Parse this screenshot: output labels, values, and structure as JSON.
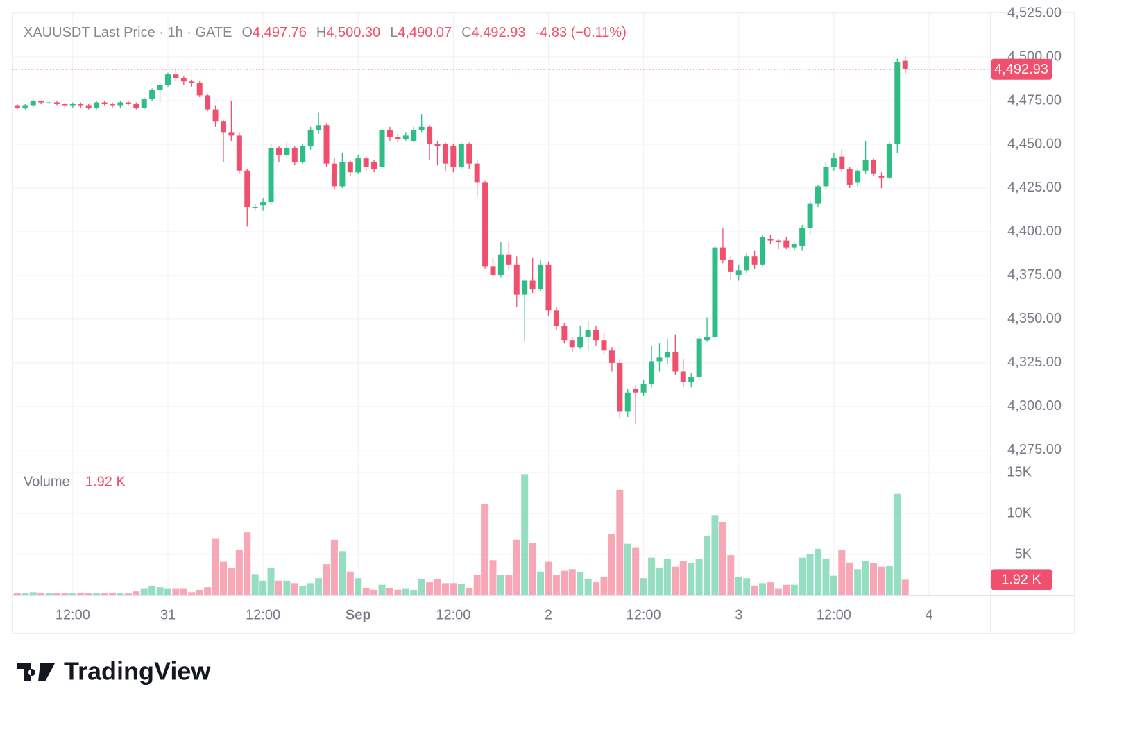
{
  "chart_data": {
    "type": "candlestick",
    "legend": {
      "symbol": "XAUUSDT Last Price · 1h · GATE",
      "o_label": "O",
      "o": "4,497.76",
      "h_label": "H",
      "h": "4,500.30",
      "l_label": "L",
      "l": "4,490.07",
      "c_label": "C",
      "c": "4,492.93",
      "change": "-4.83 (−0.11%)"
    },
    "volume_title": "Volume",
    "volume_value_label": "1.92 K",
    "last_price_label": "4,492.93",
    "brand": "TradingView",
    "up_color": "#2ebd85",
    "down_color": "#f0506d",
    "grid": true,
    "xlim": [
      -0.6,
      122.7
    ],
    "xticks": [
      {
        "value": 7,
        "label": "12:00"
      },
      {
        "value": 19,
        "label": "31"
      },
      {
        "value": 31,
        "label": "12:00"
      },
      {
        "value": 43,
        "label": "Sep"
      },
      {
        "value": 55,
        "label": "12:00"
      },
      {
        "value": 67,
        "label": "2"
      },
      {
        "value": 79,
        "label": "12:00"
      },
      {
        "value": 91,
        "label": "3"
      },
      {
        "value": 103,
        "label": "12:00"
      },
      {
        "value": 115,
        "label": "4"
      }
    ],
    "ylim": [
      4269.4,
      4525.4
    ],
    "yticks": [
      {
        "value": 4275,
        "label": "4,275.00"
      },
      {
        "value": 4300,
        "label": "4,300.00"
      },
      {
        "value": 4325,
        "label": "4,325.00"
      },
      {
        "value": 4350,
        "label": "4,350.00"
      },
      {
        "value": 4375,
        "label": "4,375.00"
      },
      {
        "value": 4400,
        "label": "4,400.00"
      },
      {
        "value": 4425,
        "label": "4,425.00"
      },
      {
        "value": 4450,
        "label": "4,450.00"
      },
      {
        "value": 4475,
        "label": "4,475.00"
      },
      {
        "value": 4500,
        "label": "4,500.00"
      },
      {
        "value": 4525,
        "label": "4,525.00"
      }
    ],
    "y2lim": [
      0,
      16356
    ],
    "y2ticks": [
      {
        "value": 5000,
        "label": "5K"
      },
      {
        "value": 10000,
        "label": "10K"
      },
      {
        "value": 15000,
        "label": "15K"
      }
    ],
    "open": [
      4472,
      4471,
      4472,
      4475,
      4474,
      4474,
      4473,
      4472,
      4473,
      4472,
      4471,
      4474,
      4473,
      4472,
      4474,
      4473,
      4471,
      4476,
      4481,
      4484,
      4490,
      4488,
      4486,
      4485,
      4478,
      4470,
      4463,
      4457,
      4455,
      4435,
      4414,
      4415,
      4417,
      4448,
      4444,
      4448,
      4440,
      4449,
      4458,
      4461,
      4439,
      4426,
      4440,
      4434,
      4442,
      4440,
      4437,
      4458,
      4454,
      4453,
      4452,
      4458,
      4460,
      4450,
      4450,
      4449,
      4437,
      4450,
      4439,
      4428,
      4380,
      4375,
      4387,
      4381,
      4364,
      4372,
      4367,
      4381,
      4355,
      4346,
      4338,
      4334,
      4340,
      4344,
      4338,
      4332,
      4325,
      4297,
      4310,
      4308,
      4313,
      4326,
      4328,
      4331,
      4320,
      4314,
      4317,
      4338,
      4340,
      4391,
      4384,
      4375,
      4378,
      4386,
      4381,
      4396,
      4395,
      4395,
      4391,
      4392,
      4402,
      4416,
      4426,
      4437,
      4443,
      4436,
      4428,
      4435,
      4441,
      4432,
      4431,
      4450,
      4497.76
    ],
    "high": [
      4473,
      4473,
      4476,
      4475,
      4475,
      4475,
      4474,
      4474,
      4474,
      4473,
      4475,
      4475,
      4474,
      4475,
      4475,
      4474,
      4477,
      4482,
      4485,
      4491,
      4493,
      4489,
      4487,
      4486,
      4479,
      4472,
      4464,
      4475,
      4457,
      4436,
      4416,
      4419,
      4450,
      4449,
      4451,
      4449,
      4450,
      4460,
      4468,
      4462,
      4442,
      4445,
      4441,
      4444,
      4443,
      4441,
      4459,
      4460,
      4456,
      4457,
      4460,
      4467,
      4461,
      4452,
      4451,
      4450,
      4451,
      4451,
      4441,
      4429,
      4385,
      4394,
      4394,
      4386,
      4373,
      4385,
      4384,
      4383,
      4357,
      4348,
      4340,
      4346,
      4349,
      4346,
      4342,
      4334,
      4327,
      4310,
      4312,
      4315,
      4335,
      4336,
      4339,
      4341,
      4327,
      4319,
      4340,
      4351,
      4392,
      4402,
      4386,
      4381,
      4388,
      4389,
      4398,
      4398,
      4396,
      4397,
      4394,
      4404,
      4418,
      4427,
      4440,
      4445,
      4447,
      4437,
      4436,
      4452,
      4442,
      4434,
      4451,
      4499,
      4500.3
    ],
    "low": [
      4470,
      4470,
      4471,
      4473,
      4473,
      4472,
      4471,
      4471,
      4471,
      4470,
      4470,
      4472,
      4471,
      4471,
      4472,
      4470,
      4470,
      4475,
      4474,
      4483,
      4486,
      4484,
      4483,
      4477,
      4469,
      4460,
      4440,
      4452,
      4433,
      4403,
      4412,
      4412,
      4415,
      4440,
      4442,
      4438,
      4439,
      4447,
      4456,
      4437,
      4424,
      4425,
      4432,
      4433,
      4435,
      4434,
      4436,
      4452,
      4451,
      4452,
      4451,
      4457,
      4441,
      4438,
      4435,
      4434,
      4436,
      4436,
      4420,
      4379,
      4374,
      4374,
      4378,
      4357,
      4337,
      4365,
      4366,
      4352,
      4344,
      4336,
      4331,
      4333,
      4332,
      4335,
      4330,
      4320,
      4293,
      4294,
      4290,
      4306,
      4311,
      4320,
      4324,
      4318,
      4311,
      4311,
      4315,
      4337,
      4339,
      4382,
      4372,
      4372,
      4376,
      4379,
      4380,
      4393,
      4390,
      4390,
      4389,
      4389,
      4398,
      4414,
      4424,
      4435,
      4434,
      4425,
      4426,
      4433,
      4432,
      4425,
      4430,
      4445,
      4490.07
    ],
    "close": [
      4471,
      4472,
      4475,
      4474,
      4474,
      4473,
      4472,
      4473,
      4472,
      4471,
      4474,
      4473,
      4472,
      4474,
      4473,
      4471,
      4476,
      4481,
      4484,
      4490,
      4488,
      4486,
      4485,
      4478,
      4470,
      4463,
      4457,
      4455,
      4435,
      4414,
      4414,
      4417,
      4448,
      4444,
      4448,
      4440,
      4449,
      4458,
      4461,
      4439,
      4426,
      4440,
      4434,
      4442,
      4437,
      4436,
      4458,
      4454,
      4453,
      4455,
      4458,
      4460,
      4450,
      4449,
      4439,
      4437,
      4450,
      4439,
      4428,
      4380,
      4375,
      4387,
      4381,
      4364,
      4372,
      4367,
      4381,
      4355,
      4346,
      4338,
      4334,
      4340,
      4344,
      4338,
      4332,
      4325,
      4297,
      4308,
      4308,
      4313,
      4326,
      4328,
      4331,
      4320,
      4314,
      4317,
      4339,
      4340,
      4391,
      4384,
      4377,
      4378,
      4386,
      4381,
      4397,
      4395,
      4394,
      4391,
      4393,
      4402,
      4416,
      4426,
      4437,
      4442,
      4436,
      4427,
      4435,
      4441,
      4433,
      4431,
      4450,
      4497,
      4492.93
    ],
    "volume": [
      300,
      250,
      400,
      350,
      300,
      250,
      300,
      250,
      350,
      300,
      250,
      300,
      350,
      250,
      300,
      500,
      800,
      1200,
      1000,
      800,
      800,
      800,
      400,
      600,
      1000,
      6900,
      4100,
      3300,
      5600,
      7700,
      2600,
      1800,
      3400,
      1800,
      1800,
      1500,
      1200,
      1500,
      2100,
      3800,
      6800,
      5400,
      2900,
      2100,
      900,
      700,
      1300,
      900,
      700,
      800,
      600,
      2000,
      1600,
      2000,
      1500,
      1500,
      1400,
      900,
      2500,
      11100,
      4300,
      2500,
      2500,
      6800,
      14800,
      6400,
      2900,
      4100,
      2500,
      3000,
      3200,
      2800,
      2000,
      1600,
      2300,
      7500,
      12900,
      6300,
      5800,
      2100,
      4600,
      3400,
      4500,
      3500,
      4200,
      3900,
      4500,
      7300,
      9800,
      8900,
      4900,
      2300,
      2100,
      1200,
      1500,
      1600,
      800,
      1300,
      1300,
      4600,
      5000,
      5700,
      4500,
      2400,
      5600,
      4000,
      3200,
      4200,
      3900,
      3500,
      3600,
      12400,
      1920
    ]
  }
}
